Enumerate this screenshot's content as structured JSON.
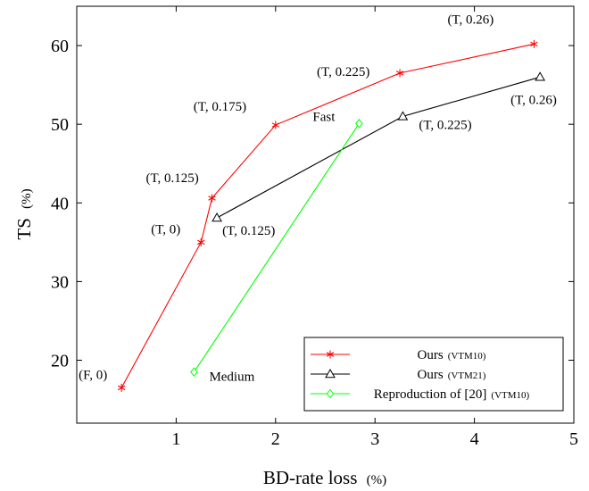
{
  "chart_data": {
    "type": "line",
    "xlabel": "BD-rate loss",
    "xlabel_unit": "(%)",
    "ylabel": "TS",
    "ylabel_unit": "(%)",
    "xlim": [
      0.0,
      5.0
    ],
    "ylim": [
      12.0,
      65.0
    ],
    "xticks": [
      1,
      2,
      3,
      4,
      5
    ],
    "yticks": [
      20,
      30,
      40,
      50,
      60
    ],
    "grid": false,
    "legend_position": "bottom-right",
    "series": [
      {
        "name": "Ours",
        "name_suffix": "(VTM10)",
        "color": "#ff0000",
        "marker": "asterisk",
        "points": [
          {
            "x": 0.45,
            "y": 16.5,
            "label": "(F, 0)"
          },
          {
            "x": 1.25,
            "y": 35.0,
            "label": "(T, 0)"
          },
          {
            "x": 1.36,
            "y": 40.6,
            "label": "(T, 0.125)"
          },
          {
            "x": 2.0,
            "y": 49.9,
            "label": "(T, 0.175)"
          },
          {
            "x": 3.25,
            "y": 56.5,
            "label": "(T, 0.225)"
          },
          {
            "x": 4.6,
            "y": 60.2,
            "label": "(T, 0.26)"
          }
        ]
      },
      {
        "name": "Ours",
        "name_suffix": "(VTM21)",
        "color": "#000000",
        "marker": "triangle",
        "points": [
          {
            "x": 1.41,
            "y": 38.1,
            "label": "(T, 0.125)"
          },
          {
            "x": 3.28,
            "y": 51.0,
            "label": "(T, 0.225)"
          },
          {
            "x": 4.66,
            "y": 56.0,
            "label": "(T, 0.26)"
          }
        ]
      },
      {
        "name": "Reproduction of [20]",
        "name_suffix": "(VTM10)",
        "color": "#00ff00",
        "marker": "diamond",
        "points": [
          {
            "x": 1.18,
            "y": 18.5,
            "label": "Medium"
          },
          {
            "x": 2.84,
            "y": 50.1,
            "label": "Fast"
          }
        ]
      }
    ]
  }
}
